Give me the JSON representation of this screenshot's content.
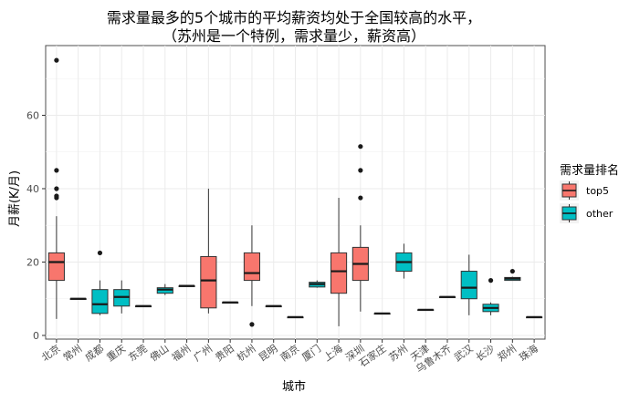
{
  "chart_data": {
    "type": "boxplot",
    "title_lines": [
      "需求量最多的5个城市的平均薪资均处于全国较高的水平，",
      "（苏州是一个特例，需求量少，薪资高）"
    ],
    "xlabel": "城市",
    "ylabel": "月薪(K/月)",
    "ylim": [
      -1,
      79
    ],
    "y_ticks": [
      0,
      20,
      40,
      60
    ],
    "grid": true,
    "legend": {
      "title": "需求量排名",
      "placement": "right",
      "entries": [
        {
          "label": "top5",
          "color": "#f8766d"
        },
        {
          "label": "other",
          "color": "#00bfc4"
        }
      ]
    },
    "boxes": [
      {
        "city": "北京",
        "group": "top5",
        "min": 4.5,
        "q1": 15,
        "median": 20,
        "q3": 22.5,
        "max": 32.5,
        "outliers": [
          37.5,
          38,
          40,
          45,
          75
        ]
      },
      {
        "city": "常州",
        "group": "other",
        "min": 10,
        "q1": 10,
        "median": 10,
        "q3": 10,
        "max": 10,
        "outliers": []
      },
      {
        "city": "成都",
        "group": "other",
        "min": 5.5,
        "q1": 6,
        "median": 8.5,
        "q3": 12.5,
        "max": 15,
        "outliers": [
          22.5
        ]
      },
      {
        "city": "重庆",
        "group": "other",
        "min": 6,
        "q1": 8,
        "median": 10.5,
        "q3": 12.5,
        "max": 15,
        "outliers": []
      },
      {
        "city": "东莞",
        "group": "other",
        "min": 8,
        "q1": 8,
        "median": 8,
        "q3": 8,
        "max": 8,
        "outliers": []
      },
      {
        "city": "佛山",
        "group": "other",
        "min": 11,
        "q1": 11.5,
        "median": 12.5,
        "q3": 13,
        "max": 14,
        "outliers": []
      },
      {
        "city": "福州",
        "group": "other",
        "min": 13.5,
        "q1": 13.5,
        "median": 13.5,
        "q3": 13.5,
        "max": 13.5,
        "outliers": []
      },
      {
        "city": "广州",
        "group": "top5",
        "min": 6,
        "q1": 7.5,
        "median": 15,
        "q3": 21.5,
        "max": 40,
        "outliers": []
      },
      {
        "city": "贵阳",
        "group": "other",
        "min": 9,
        "q1": 9,
        "median": 9,
        "q3": 9,
        "max": 9,
        "outliers": []
      },
      {
        "city": "杭州",
        "group": "top5",
        "min": 8,
        "q1": 15,
        "median": 17,
        "q3": 22.5,
        "max": 30,
        "outliers": [
          3
        ]
      },
      {
        "city": "昆明",
        "group": "other",
        "min": 8,
        "q1": 8,
        "median": 8,
        "q3": 8,
        "max": 8,
        "outliers": []
      },
      {
        "city": "南京",
        "group": "other",
        "min": 5,
        "q1": 5,
        "median": 5,
        "q3": 5,
        "max": 5,
        "outliers": []
      },
      {
        "city": "厦门",
        "group": "other",
        "min": 13,
        "q1": 13.2,
        "median": 14,
        "q3": 14.5,
        "max": 15,
        "outliers": []
      },
      {
        "city": "上海",
        "group": "top5",
        "min": 2.5,
        "q1": 11.5,
        "median": 17.5,
        "q3": 22.5,
        "max": 37.5,
        "outliers": []
      },
      {
        "city": "深圳",
        "group": "top5",
        "min": 6.5,
        "q1": 15,
        "median": 19.5,
        "q3": 24,
        "max": 30,
        "outliers": [
          37.5,
          45,
          51.5
        ]
      },
      {
        "city": "石家庄",
        "group": "other",
        "min": 6,
        "q1": 6,
        "median": 6,
        "q3": 6,
        "max": 6,
        "outliers": []
      },
      {
        "city": "苏州",
        "group": "other",
        "min": 15.5,
        "q1": 17.5,
        "median": 20,
        "q3": 22.5,
        "max": 25,
        "outliers": []
      },
      {
        "city": "天津",
        "group": "other",
        "min": 7,
        "q1": 7,
        "median": 7,
        "q3": 7,
        "max": 7,
        "outliers": []
      },
      {
        "city": "乌鲁木齐",
        "group": "other",
        "min": 10.5,
        "q1": 10.5,
        "median": 10.5,
        "q3": 10.5,
        "max": 10.5,
        "outliers": []
      },
      {
        "city": "武汉",
        "group": "other",
        "min": 5.5,
        "q1": 10,
        "median": 13,
        "q3": 17.5,
        "max": 22,
        "outliers": []
      },
      {
        "city": "长沙",
        "group": "other",
        "min": 5.5,
        "q1": 6.5,
        "median": 7.5,
        "q3": 8.5,
        "max": 9,
        "outliers": [
          15
        ]
      },
      {
        "city": "郑州",
        "group": "other",
        "min": 15,
        "q1": 15,
        "median": 15.5,
        "q3": 15.8,
        "max": 16,
        "outliers": [
          17.5
        ]
      },
      {
        "city": "珠海",
        "group": "other",
        "min": 5,
        "q1": 5,
        "median": 5,
        "q3": 5,
        "max": 5,
        "outliers": []
      }
    ]
  }
}
